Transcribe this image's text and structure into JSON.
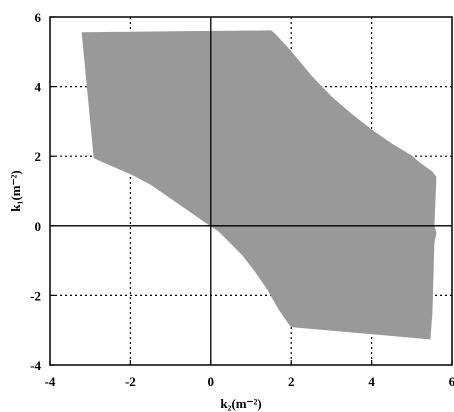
{
  "chart_data": {
    "type": "area",
    "title": "",
    "xlabel": "k₂(m⁻²)",
    "ylabel": "k₁(m⁻²)",
    "xlim": [
      -4,
      6
    ],
    "ylim": [
      -4,
      6
    ],
    "xticks": [
      -4,
      -2,
      0,
      2,
      4,
      6
    ],
    "yticks": [
      -4,
      -2,
      0,
      2,
      4,
      6
    ],
    "xtick_labels": [
      "-4",
      "-2",
      "0",
      "2",
      "4",
      "6"
    ],
    "ytick_labels": [
      "-4",
      "-2",
      "0",
      "2",
      "4",
      "6"
    ],
    "grid": true,
    "grid_style": "dotted",
    "zero_lines": true,
    "region_color": "#999999",
    "region_boundary": {
      "x": [
        -3.2,
        1.5,
        1.6,
        2.0,
        2.5,
        3.0,
        3.5,
        4.0,
        4.5,
        5.0,
        5.2,
        5.5,
        5.6,
        5.55,
        5.6,
        5.55,
        5.5,
        5.45,
        5.0,
        2.0,
        1.7,
        1.4,
        1.1,
        0.8,
        0.5,
        0.2,
        0.0,
        -0.5,
        -1.0,
        -1.5,
        -2.0,
        -2.5,
        -2.9,
        -3.2
      ],
      "y": [
        5.55,
        5.6,
        5.5,
        5.0,
        4.3,
        3.7,
        3.2,
        2.75,
        2.35,
        2.0,
        1.8,
        1.55,
        1.4,
        0.0,
        -0.2,
        -0.5,
        -2.5,
        -3.25,
        -3.2,
        -2.9,
        -2.4,
        -1.8,
        -1.3,
        -0.85,
        -0.5,
        -0.15,
        0.0,
        0.4,
        0.8,
        1.2,
        1.5,
        1.75,
        1.95,
        5.55
      ]
    }
  }
}
